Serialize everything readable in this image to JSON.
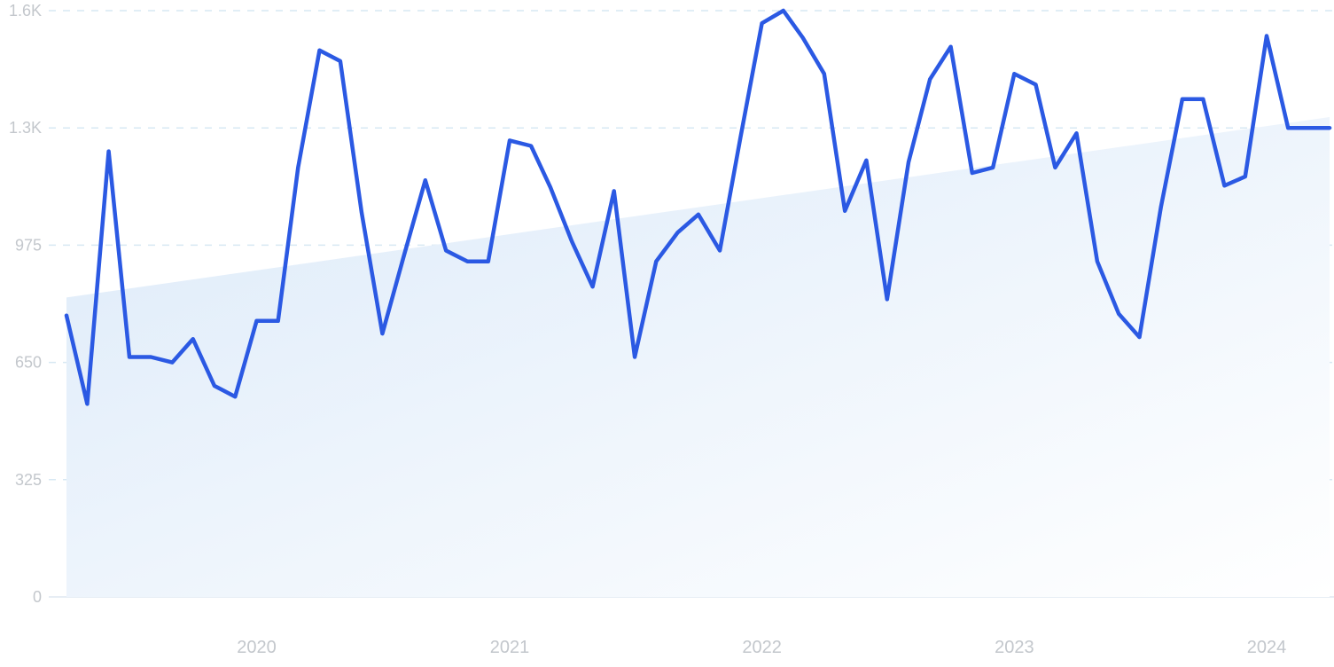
{
  "chart_data": {
    "type": "line",
    "x_tick_labels": [
      "2020",
      "2021",
      "2022",
      "2023",
      "2024"
    ],
    "y_tick_labels": [
      "0",
      "325",
      "650",
      "975",
      "1.3K",
      "1.6K"
    ],
    "y_ticks": [
      0,
      325,
      650,
      975,
      1300,
      1625
    ],
    "ylim": [
      0,
      1625
    ],
    "grid": true,
    "series": [
      {
        "color": "#2b59e3",
        "x": [
          "2019-04",
          "2019-05",
          "2019-06",
          "2019-07",
          "2019-08",
          "2019-09",
          "2019-10",
          "2019-11",
          "2019-12",
          "2020-01",
          "2020-02",
          "2020-03",
          "2020-04",
          "2020-05",
          "2020-06",
          "2020-07",
          "2020-08",
          "2020-09",
          "2020-10",
          "2020-11",
          "2020-12",
          "2021-01",
          "2021-02",
          "2021-03",
          "2021-04",
          "2021-05",
          "2021-06",
          "2021-07",
          "2021-08",
          "2021-09",
          "2021-10",
          "2021-11",
          "2021-12",
          "2022-01",
          "2022-02",
          "2022-03",
          "2022-04",
          "2022-05",
          "2022-06",
          "2022-07",
          "2022-08",
          "2022-09",
          "2022-10",
          "2022-11",
          "2022-12",
          "2023-01",
          "2023-02",
          "2023-03",
          "2023-04",
          "2023-05",
          "2023-06",
          "2023-07",
          "2023-08",
          "2023-09",
          "2023-10",
          "2023-11",
          "2023-12",
          "2024-01",
          "2024-02",
          "2024-03",
          "2024-04"
        ],
        "values": [
          780,
          535,
          1235,
          665,
          665,
          650,
          715,
          585,
          555,
          765,
          765,
          1190,
          1515,
          1485,
          1065,
          730,
          945,
          1155,
          960,
          930,
          930,
          1265,
          1250,
          1135,
          985,
          860,
          1125,
          665,
          930,
          1010,
          1060,
          960,
          1275,
          1590,
          1625,
          1550,
          1450,
          1070,
          1210,
          825,
          1205,
          1435,
          1525,
          1175,
          1190,
          1450,
          1420,
          1190,
          1285,
          930,
          785,
          720,
          1080,
          1380,
          1380,
          1140,
          1165,
          1555,
          1300,
          1300,
          1300
        ]
      }
    ],
    "trend": {
      "x": [
        "2019-04",
        "2024-04"
      ],
      "values": [
        830,
        1330
      ],
      "fill_color": "#dbeafb"
    }
  }
}
